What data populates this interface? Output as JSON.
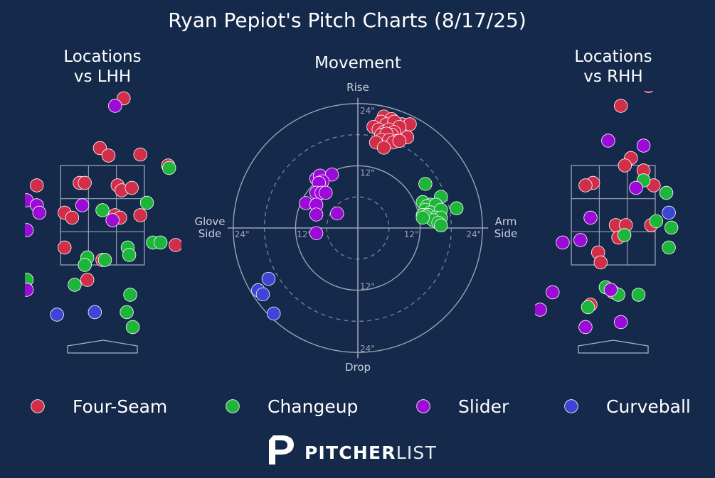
{
  "title": "Ryan Pepiot's Pitch Charts (8/17/25)",
  "panels": {
    "lhh_title_line1": "Locations",
    "lhh_title_line2": "vs LHH",
    "movement_title": "Movement",
    "rhh_title_line1": "Locations",
    "rhh_title_line2": "vs RHH"
  },
  "movement_axes": {
    "top": "Rise",
    "bottom": "Drop",
    "left_line1": "Glove",
    "left_line2": "Side",
    "right_line1": "Arm",
    "right_line2": "Side",
    "ring_label_12": "12\"",
    "ring_label_24": "24\""
  },
  "brand": {
    "name_bold": "PITCHER",
    "name_light": "LIST",
    "logo_letter": "P"
  },
  "colors": {
    "background": "#15294b",
    "Four-Seam": "#d22d49",
    "Changeup": "#1db53a",
    "Slider": "#9b0ad6",
    "Curveball": "#3d44d6",
    "grid": "#9aa3b4"
  },
  "chart_data": [
    {
      "type": "scatter",
      "title": "Locations vs LHH",
      "units": "plate_x feet (catcher view), plate_z feet",
      "strike_zone": {
        "x": [
          -0.83,
          0.83
        ],
        "z": [
          1.5,
          3.5
        ]
      },
      "series": [
        {
          "name": "Four-Seam",
          "points": [
            [
              0.42,
              4.85
            ],
            [
              -0.05,
              3.85
            ],
            [
              0.12,
              3.7
            ],
            [
              0.75,
              3.72
            ],
            [
              1.3,
              3.5
            ],
            [
              -1.3,
              3.1
            ],
            [
              -0.45,
              3.15
            ],
            [
              -0.35,
              3.15
            ],
            [
              0.3,
              3.1
            ],
            [
              0.38,
              3.0
            ],
            [
              0.58,
              3.05
            ],
            [
              -0.75,
              2.55
            ],
            [
              -0.6,
              2.45
            ],
            [
              0.25,
              2.5
            ],
            [
              0.35,
              2.45
            ],
            [
              0.75,
              2.5
            ],
            [
              -0.75,
              1.85
            ],
            [
              0.0,
              1.6
            ],
            [
              -0.3,
              1.2
            ],
            [
              1.45,
              1.9
            ]
          ]
        },
        {
          "name": "Changeup",
          "points": [
            [
              0.88,
              2.75
            ],
            [
              0.0,
              2.6
            ],
            [
              1.32,
              3.45
            ],
            [
              1.0,
              1.95
            ],
            [
              1.15,
              1.95
            ],
            [
              0.5,
              1.85
            ],
            [
              0.53,
              1.7
            ],
            [
              -0.3,
              1.65
            ],
            [
              -0.35,
              1.5
            ],
            [
              0.05,
              1.6
            ],
            [
              -1.5,
              1.2
            ],
            [
              -0.55,
              1.1
            ],
            [
              0.55,
              0.9
            ],
            [
              0.48,
              0.55
            ],
            [
              0.6,
              0.25
            ]
          ]
        },
        {
          "name": "Slider",
          "points": [
            [
              0.25,
              4.7
            ],
            [
              -1.5,
              2.8
            ],
            [
              -1.3,
              2.7
            ],
            [
              -1.25,
              2.55
            ],
            [
              -0.4,
              2.7
            ],
            [
              0.2,
              2.4
            ],
            [
              -1.5,
              2.2
            ],
            [
              -1.5,
              1.0
            ]
          ]
        },
        {
          "name": "Curveball",
          "points": [
            [
              -0.9,
              0.5
            ],
            [
              -0.15,
              0.55
            ]
          ]
        }
      ]
    },
    {
      "type": "scatter",
      "title": "Movement",
      "units": "horizontal break inches (negative = glove side, positive = arm side), induced vertical break inches",
      "rings": [
        12,
        24
      ],
      "series": [
        {
          "name": "Four-Seam",
          "points": [
            [
              5,
              21.5
            ],
            [
              6.5,
              21
            ],
            [
              8.5,
              20
            ],
            [
              10,
              20
            ],
            [
              4.5,
              20.5
            ],
            [
              5.5,
              20
            ],
            [
              7,
              20.5
            ],
            [
              8,
              19.5
            ],
            [
              3,
              19.5
            ],
            [
              4,
              19
            ],
            [
              5,
              18.5
            ],
            [
              6,
              19
            ],
            [
              7,
              18.5
            ],
            [
              6.5,
              18
            ],
            [
              4.5,
              18
            ],
            [
              5.5,
              18.2
            ],
            [
              9.5,
              17.5
            ],
            [
              4.5,
              17
            ],
            [
              6,
              17
            ],
            [
              7.5,
              16.8
            ],
            [
              3.5,
              16.5
            ],
            [
              6.8,
              16.5
            ],
            [
              8,
              16.8
            ],
            [
              5,
              15.5
            ]
          ]
        },
        {
          "name": "Changeup",
          "points": [
            [
              13,
              8.5
            ],
            [
              12.5,
              5
            ],
            [
              14,
              4.5
            ],
            [
              16,
              6
            ],
            [
              13.3,
              4.2
            ],
            [
              15,
              4.5
            ],
            [
              13,
              3.5
            ],
            [
              14,
              3
            ],
            [
              16,
              3.5
            ],
            [
              12.5,
              2.5
            ],
            [
              13.5,
              2.5
            ],
            [
              15,
              2
            ],
            [
              15.5,
              1.5
            ],
            [
              13,
              2.2
            ],
            [
              16,
              2
            ],
            [
              14.5,
              1.5
            ],
            [
              15.5,
              1
            ],
            [
              16,
              0.5
            ],
            [
              12.5,
              2
            ],
            [
              19,
              3.8
            ]
          ]
        },
        {
          "name": "Slider",
          "points": [
            [
              -8,
              9.5
            ],
            [
              -7.3,
              10.1
            ],
            [
              -5,
              10.3
            ],
            [
              -6.8,
              9
            ],
            [
              -7.5,
              8.7
            ],
            [
              -8,
              6.8
            ],
            [
              -7,
              6.8
            ],
            [
              -6.2,
              6.8
            ],
            [
              -10,
              4.8
            ],
            [
              -8,
              4.5
            ],
            [
              -4,
              2.8
            ],
            [
              -8,
              2.6
            ],
            [
              -8,
              -1
            ]
          ]
        },
        {
          "name": "Curveball",
          "points": [
            [
              -17.2,
              -9.8
            ],
            [
              -19.2,
              -12
            ],
            [
              -18.3,
              -12.8
            ],
            [
              -16.2,
              -16.5
            ]
          ]
        }
      ]
    },
    {
      "type": "scatter",
      "title": "Locations vs RHH",
      "units": "plate_x feet (catcher view), plate_z feet",
      "strike_zone": {
        "x": [
          -0.83,
          0.83
        ],
        "z": [
          1.5,
          3.5
        ]
      },
      "series": [
        {
          "name": "Four-Seam",
          "points": [
            [
              0.7,
              5.1
            ],
            [
              0.15,
              4.7
            ],
            [
              0.35,
              3.65
            ],
            [
              0.23,
              3.5
            ],
            [
              0.6,
              3.4
            ],
            [
              0.8,
              3.1
            ],
            [
              -0.4,
              3.15
            ],
            [
              -0.55,
              3.1
            ],
            [
              -1.9,
              2.55
            ],
            [
              0.05,
              2.3
            ],
            [
              0.25,
              2.3
            ],
            [
              0.75,
              2.3
            ],
            [
              0.1,
              2.05
            ],
            [
              -0.3,
              1.75
            ],
            [
              -0.25,
              1.55
            ],
            [
              -1.95,
              1.35
            ],
            [
              -2.4,
              1.0
            ],
            [
              -1.7,
              0.85
            ],
            [
              -0.45,
              0.7
            ],
            [
              0.0,
              0.95
            ]
          ]
        },
        {
          "name": "Changeup",
          "points": [
            [
              0.6,
              3.2
            ],
            [
              1.05,
              2.95
            ],
            [
              1.15,
              2.25
            ],
            [
              1.1,
              1.85
            ],
            [
              0.22,
              2.1
            ],
            [
              0.85,
              2.38
            ],
            [
              -0.15,
              1.05
            ],
            [
              0.1,
              0.9
            ],
            [
              0.5,
              0.9
            ],
            [
              -0.5,
              0.65
            ],
            [
              1.7,
              0.3
            ]
          ]
        },
        {
          "name": "Slider",
          "points": [
            [
              -0.1,
              4.0
            ],
            [
              0.6,
              3.9
            ],
            [
              0.45,
              3.05
            ],
            [
              -0.45,
              2.45
            ],
            [
              -1.0,
              1.95
            ],
            [
              -0.65,
              2.0
            ],
            [
              -1.2,
              0.95
            ],
            [
              -1.45,
              0.6
            ],
            [
              -0.55,
              0.25
            ],
            [
              0.15,
              0.35
            ],
            [
              -0.05,
              1.0
            ]
          ]
        },
        {
          "name": "Curveball",
          "points": [
            [
              1.1,
              2.55
            ]
          ]
        }
      ]
    }
  ],
  "legend": [
    {
      "name": "Four-Seam"
    },
    {
      "name": "Changeup"
    },
    {
      "name": "Slider"
    },
    {
      "name": "Curveball"
    }
  ]
}
